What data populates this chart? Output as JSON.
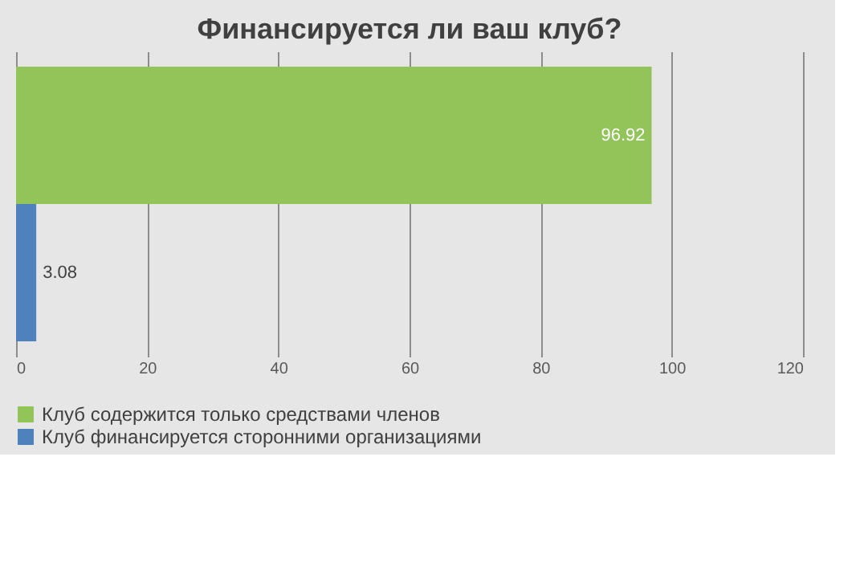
{
  "chart_data": {
    "type": "bar",
    "orientation": "horizontal",
    "title": "Финансируется ли ваш клуб?",
    "categories": [
      null
    ],
    "series": [
      {
        "name": "Клуб содержится только средствами членов",
        "color": "#92c45a",
        "values": [
          96.92
        ]
      },
      {
        "name": "Клуб финансируется сторонними организациями",
        "color": "#4f81bd",
        "values": [
          3.08
        ]
      }
    ],
    "xlim": [
      0,
      120
    ],
    "xticks": [
      0,
      20,
      40,
      60,
      80,
      100,
      120
    ],
    "grid": "x",
    "legend": "bottom",
    "data_labels": true
  }
}
